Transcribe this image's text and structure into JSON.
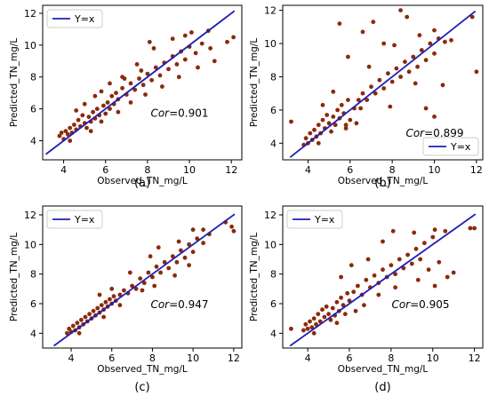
{
  "chart_data": [
    {
      "type": "scatter",
      "panel_label": "(a)",
      "xlabel": "Observed_TN_mg/L",
      "ylabel": "Predicted_TN_mg/L",
      "xlim": [
        3,
        12.5
      ],
      "ylim": [
        2.8,
        12.5
      ],
      "xticks": [
        4,
        6,
        8,
        10,
        12
      ],
      "yticks": [
        4,
        6,
        8,
        10,
        12
      ],
      "legend": {
        "label": "Y=x",
        "position": "top-left"
      },
      "cor_label": "Cor",
      "cor_value": "=0.901",
      "line_color": "#1f1fb4",
      "point_color": "#8b2a0a",
      "points": [
        [
          3.8,
          4.3
        ],
        [
          3.9,
          4.5
        ],
        [
          4.0,
          4.1
        ],
        [
          4.1,
          4.6
        ],
        [
          4.2,
          4.4
        ],
        [
          4.3,
          4.8
        ],
        [
          4.4,
          4.5
        ],
        [
          4.5,
          5.0
        ],
        [
          4.6,
          4.7
        ],
        [
          4.7,
          5.3
        ],
        [
          4.8,
          4.9
        ],
        [
          4.9,
          5.6
        ],
        [
          5.0,
          5.1
        ],
        [
          5.1,
          4.8
        ],
        [
          5.2,
          5.5
        ],
        [
          5.3,
          5.2
        ],
        [
          5.4,
          5.8
        ],
        [
          5.5,
          5.4
        ],
        [
          5.6,
          6.0
        ],
        [
          5.7,
          5.6
        ],
        [
          5.8,
          5.2
        ],
        [
          5.9,
          6.2
        ],
        [
          6.0,
          5.7
        ],
        [
          6.1,
          6.4
        ],
        [
          6.2,
          6.0
        ],
        [
          6.3,
          6.8
        ],
        [
          6.4,
          6.3
        ],
        [
          6.5,
          7.0
        ],
        [
          6.6,
          6.6
        ],
        [
          6.8,
          7.3
        ],
        [
          7.0,
          6.9
        ],
        [
          7.2,
          7.6
        ],
        [
          7.4,
          7.2
        ],
        [
          7.6,
          7.9
        ],
        [
          7.8,
          7.5
        ],
        [
          8.0,
          8.2
        ],
        [
          8.2,
          7.8
        ],
        [
          8.4,
          8.6
        ],
        [
          8.6,
          8.1
        ],
        [
          8.8,
          8.9
        ],
        [
          9.0,
          8.5
        ],
        [
          9.2,
          9.3
        ],
        [
          9.4,
          8.8
        ],
        [
          9.6,
          9.6
        ],
        [
          9.8,
          9.1
        ],
        [
          10.0,
          9.9
        ],
        [
          10.3,
          9.5
        ],
        [
          10.6,
          10.1
        ],
        [
          11.0,
          9.8
        ],
        [
          11.8,
          10.2
        ],
        [
          12.1,
          10.5
        ],
        [
          5.0,
          6.3
        ],
        [
          5.5,
          6.8
        ],
        [
          4.6,
          5.9
        ],
        [
          6.8,
          8.0
        ],
        [
          7.5,
          8.8
        ],
        [
          8.3,
          9.8
        ],
        [
          9.2,
          10.4
        ],
        [
          10.1,
          10.8
        ],
        [
          6.2,
          7.6
        ],
        [
          7.9,
          6.9
        ],
        [
          8.7,
          7.4
        ],
        [
          9.5,
          8.0
        ],
        [
          10.4,
          8.6
        ],
        [
          11.2,
          9.0
        ],
        [
          5.3,
          4.6
        ],
        [
          4.3,
          4.0
        ],
        [
          6.6,
          5.8
        ],
        [
          7.2,
          6.4
        ],
        [
          8.1,
          10.2
        ],
        [
          9.8,
          10.6
        ],
        [
          10.9,
          10.9
        ],
        [
          5.8,
          7.1
        ],
        [
          6.9,
          7.9
        ],
        [
          7.7,
          8.4
        ]
      ]
    },
    {
      "type": "scatter",
      "panel_label": "(b)",
      "xlabel": "Observed_TN_mg/L",
      "ylabel": "Predicted_TN_mg/L",
      "xlim": [
        2.8,
        12.3
      ],
      "ylim": [
        3.0,
        12.3
      ],
      "xticks": [
        4,
        6,
        8,
        10,
        12
      ],
      "yticks": [
        4,
        6,
        8,
        10,
        12
      ],
      "legend": {
        "label": "Y=x",
        "position": "bottom-right"
      },
      "cor_label": "Cor",
      "cor_value": "=0.899",
      "line_color": "#1f1fb4",
      "point_color": "#8b2a0a",
      "points": [
        [
          3.2,
          5.3
        ],
        [
          3.8,
          3.9
        ],
        [
          3.9,
          4.3
        ],
        [
          4.0,
          4.0
        ],
        [
          4.1,
          4.6
        ],
        [
          4.2,
          4.2
        ],
        [
          4.3,
          4.8
        ],
        [
          4.4,
          4.4
        ],
        [
          4.5,
          5.1
        ],
        [
          4.6,
          4.6
        ],
        [
          4.7,
          5.4
        ],
        [
          4.8,
          4.9
        ],
        [
          4.9,
          5.7
        ],
        [
          5.0,
          5.2
        ],
        [
          5.1,
          4.7
        ],
        [
          5.2,
          5.6
        ],
        [
          5.3,
          5.1
        ],
        [
          5.4,
          6.0
        ],
        [
          5.5,
          5.5
        ],
        [
          5.6,
          6.3
        ],
        [
          5.7,
          5.8
        ],
        [
          5.8,
          5.1
        ],
        [
          5.9,
          6.6
        ],
        [
          6.0,
          5.4
        ],
        [
          6.2,
          6.1
        ],
        [
          6.4,
          6.6
        ],
        [
          6.6,
          7.0
        ],
        [
          6.8,
          6.6
        ],
        [
          7.0,
          7.4
        ],
        [
          7.2,
          7.0
        ],
        [
          7.4,
          7.8
        ],
        [
          7.6,
          7.3
        ],
        [
          7.8,
          8.2
        ],
        [
          8.0,
          7.7
        ],
        [
          8.2,
          8.5
        ],
        [
          8.4,
          8.0
        ],
        [
          8.6,
          8.9
        ],
        [
          8.8,
          8.3
        ],
        [
          9.0,
          9.2
        ],
        [
          9.2,
          8.6
        ],
        [
          9.4,
          9.6
        ],
        [
          9.6,
          9.0
        ],
        [
          9.8,
          10.0
        ],
        [
          10.0,
          9.4
        ],
        [
          10.2,
          10.3
        ],
        [
          10.5,
          10.1
        ],
        [
          10.8,
          10.2
        ],
        [
          11.8,
          11.6
        ],
        [
          12.0,
          8.3
        ],
        [
          5.5,
          11.2
        ],
        [
          6.6,
          10.7
        ],
        [
          7.6,
          10.0
        ],
        [
          8.4,
          12.0
        ],
        [
          7.1,
          11.3
        ],
        [
          8.7,
          11.6
        ],
        [
          5.9,
          9.2
        ],
        [
          4.7,
          6.3
        ],
        [
          6.3,
          5.2
        ],
        [
          7.9,
          6.2
        ],
        [
          9.1,
          7.6
        ],
        [
          9.6,
          6.1
        ],
        [
          10.0,
          5.6
        ],
        [
          10.4,
          7.5
        ],
        [
          6.9,
          8.6
        ],
        [
          5.2,
          7.1
        ],
        [
          8.1,
          9.9
        ],
        [
          9.3,
          10.5
        ],
        [
          10.0,
          10.8
        ],
        [
          4.5,
          4.0
        ],
        [
          5.8,
          4.9
        ],
        [
          6.5,
          6.1
        ]
      ]
    },
    {
      "type": "scatter",
      "panel_label": "(c)",
      "xlabel": "Observed_TN_mg/L",
      "ylabel": "Predicted_TN_mg/L",
      "xlim": [
        2.6,
        12.4
      ],
      "ylim": [
        3.0,
        12.6
      ],
      "xticks": [
        4,
        6,
        8,
        10,
        12
      ],
      "yticks": [
        4,
        6,
        8,
        10,
        12
      ],
      "legend": {
        "label": "Y=x",
        "position": "top-left"
      },
      "cor_label": "Cor",
      "cor_value": "=0.947",
      "line_color": "#1f1fb4",
      "point_color": "#8b2a0a",
      "points": [
        [
          3.8,
          4.0
        ],
        [
          3.9,
          4.3
        ],
        [
          4.0,
          4.1
        ],
        [
          4.1,
          4.5
        ],
        [
          4.2,
          4.2
        ],
        [
          4.3,
          4.7
        ],
        [
          4.4,
          4.4
        ],
        [
          4.5,
          4.9
        ],
        [
          4.6,
          4.6
        ],
        [
          4.7,
          5.1
        ],
        [
          4.8,
          4.8
        ],
        [
          4.9,
          5.3
        ],
        [
          5.0,
          5.0
        ],
        [
          5.1,
          5.5
        ],
        [
          5.2,
          5.2
        ],
        [
          5.3,
          5.7
        ],
        [
          5.4,
          5.4
        ],
        [
          5.5,
          5.9
        ],
        [
          5.6,
          5.6
        ],
        [
          5.7,
          6.1
        ],
        [
          5.8,
          5.8
        ],
        [
          5.9,
          6.3
        ],
        [
          6.0,
          6.0
        ],
        [
          6.1,
          6.5
        ],
        [
          6.2,
          6.2
        ],
        [
          6.4,
          6.6
        ],
        [
          6.6,
          6.9
        ],
        [
          6.8,
          6.7
        ],
        [
          7.0,
          7.2
        ],
        [
          7.2,
          7.0
        ],
        [
          7.4,
          7.7
        ],
        [
          7.6,
          7.4
        ],
        [
          7.8,
          8.1
        ],
        [
          8.0,
          7.8
        ],
        [
          8.2,
          8.5
        ],
        [
          8.4,
          8.1
        ],
        [
          8.6,
          8.8
        ],
        [
          8.8,
          8.4
        ],
        [
          9.0,
          9.2
        ],
        [
          9.2,
          8.8
        ],
        [
          9.4,
          9.6
        ],
        [
          9.6,
          9.1
        ],
        [
          9.8,
          10.0
        ],
        [
          10.0,
          9.5
        ],
        [
          10.2,
          10.4
        ],
        [
          10.5,
          10.1
        ],
        [
          10.8,
          10.7
        ],
        [
          11.6,
          11.5
        ],
        [
          11.9,
          11.2
        ],
        [
          12.0,
          10.9
        ],
        [
          5.4,
          6.6
        ],
        [
          6.0,
          7.0
        ],
        [
          6.9,
          8.1
        ],
        [
          7.9,
          9.2
        ],
        [
          8.3,
          9.8
        ],
        [
          9.3,
          10.2
        ],
        [
          10.0,
          11.0
        ],
        [
          10.5,
          11.0
        ],
        [
          6.4,
          5.9
        ],
        [
          7.5,
          6.9
        ],
        [
          8.1,
          7.2
        ],
        [
          9.1,
          7.9
        ],
        [
          9.8,
          8.6
        ],
        [
          5.6,
          5.1
        ],
        [
          4.4,
          4.0
        ]
      ]
    },
    {
      "type": "scatter",
      "panel_label": "(d)",
      "xlabel": "Observed_TN_mg/L",
      "ylabel": "Predicted_TN_mg/L",
      "xlim": [
        2.8,
        12.4
      ],
      "ylim": [
        3.0,
        12.6
      ],
      "xticks": [
        4,
        6,
        8,
        10,
        12
      ],
      "yticks": [
        4,
        6,
        8,
        10,
        12
      ],
      "legend": {
        "label": "Y=x",
        "position": "top-left"
      },
      "cor_label": "Cor",
      "cor_value": "=0.905",
      "line_color": "#1f1fb4",
      "point_color": "#8b2a0a",
      "points": [
        [
          3.2,
          4.3
        ],
        [
          3.8,
          4.2
        ],
        [
          3.9,
          4.6
        ],
        [
          4.0,
          4.3
        ],
        [
          4.1,
          4.8
        ],
        [
          4.2,
          4.4
        ],
        [
          4.3,
          5.0
        ],
        [
          4.4,
          4.6
        ],
        [
          4.5,
          5.3
        ],
        [
          4.6,
          4.8
        ],
        [
          4.7,
          5.6
        ],
        [
          4.8,
          5.1
        ],
        [
          4.9,
          5.8
        ],
        [
          5.0,
          5.3
        ],
        [
          5.1,
          4.9
        ],
        [
          5.2,
          5.7
        ],
        [
          5.3,
          5.2
        ],
        [
          5.4,
          6.1
        ],
        [
          5.5,
          5.5
        ],
        [
          5.6,
          6.4
        ],
        [
          5.7,
          5.9
        ],
        [
          5.8,
          5.3
        ],
        [
          5.9,
          6.7
        ],
        [
          6.0,
          6.2
        ],
        [
          6.2,
          6.8
        ],
        [
          6.4,
          7.2
        ],
        [
          6.6,
          6.6
        ],
        [
          6.8,
          7.6
        ],
        [
          7.0,
          7.1
        ],
        [
          7.2,
          7.9
        ],
        [
          7.4,
          7.4
        ],
        [
          7.6,
          8.3
        ],
        [
          7.8,
          7.8
        ],
        [
          8.0,
          8.6
        ],
        [
          8.2,
          8.0
        ],
        [
          8.4,
          9.0
        ],
        [
          8.6,
          8.4
        ],
        [
          8.8,
          9.3
        ],
        [
          9.0,
          8.7
        ],
        [
          9.2,
          9.7
        ],
        [
          9.4,
          9.0
        ],
        [
          9.6,
          10.1
        ],
        [
          9.8,
          8.3
        ],
        [
          10.0,
          10.5
        ],
        [
          10.3,
          8.8
        ],
        [
          10.6,
          10.9
        ],
        [
          11.0,
          8.1
        ],
        [
          11.8,
          11.1
        ],
        [
          12.0,
          11.1
        ],
        [
          5.6,
          7.8
        ],
        [
          6.1,
          8.6
        ],
        [
          6.9,
          9.0
        ],
        [
          7.6,
          10.2
        ],
        [
          8.1,
          10.9
        ],
        [
          9.1,
          10.8
        ],
        [
          10.1,
          11.0
        ],
        [
          6.7,
          5.9
        ],
        [
          7.4,
          6.6
        ],
        [
          8.2,
          7.1
        ],
        [
          9.3,
          7.6
        ],
        [
          10.1,
          7.2
        ],
        [
          10.7,
          7.8
        ],
        [
          4.3,
          4.0
        ],
        [
          5.4,
          4.7
        ],
        [
          6.3,
          5.5
        ]
      ]
    }
  ]
}
